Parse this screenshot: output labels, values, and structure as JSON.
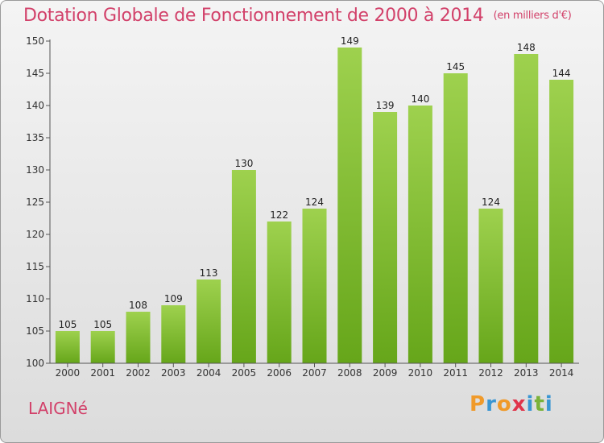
{
  "header": {
    "title": "Dotation Globale de Fonctionnement de 2000 à 2014",
    "subtitle": "(en milliers d'€)"
  },
  "footer": {
    "commune": "LAIGNé",
    "logo": [
      "P",
      "r",
      "o",
      "x",
      "i",
      "t",
      "i"
    ]
  },
  "colors": {
    "title": "#d2416a",
    "bar_top": "#9ed14e",
    "bar_bottom": "#66a61a",
    "logo": [
      "#f09a2a",
      "#3a96d3",
      "#f09a2a",
      "#e0344a",
      "#3a96d3",
      "#7ab23a",
      "#3a96d3"
    ]
  },
  "chart_data": {
    "type": "bar",
    "title": "Dotation Globale de Fonctionnement de 2000 à 2014",
    "subtitle": "(en milliers d'€)",
    "categories": [
      "2000",
      "2001",
      "2002",
      "2003",
      "2004",
      "2005",
      "2006",
      "2007",
      "2008",
      "2009",
      "2010",
      "2011",
      "2012",
      "2013",
      "2014"
    ],
    "values": [
      105,
      105,
      108,
      109,
      113,
      130,
      122,
      124,
      149,
      139,
      140,
      145,
      124,
      148,
      144
    ],
    "data_labels": [
      "105",
      "105",
      "108",
      "109",
      "113",
      "130",
      "122",
      "124",
      "149",
      "139",
      "140",
      "145",
      "124",
      "148",
      "144"
    ],
    "ylim": [
      100,
      150
    ],
    "yticks": [
      100,
      105,
      110,
      115,
      120,
      125,
      130,
      135,
      140,
      145,
      150
    ],
    "grid": false,
    "legend": "none"
  }
}
